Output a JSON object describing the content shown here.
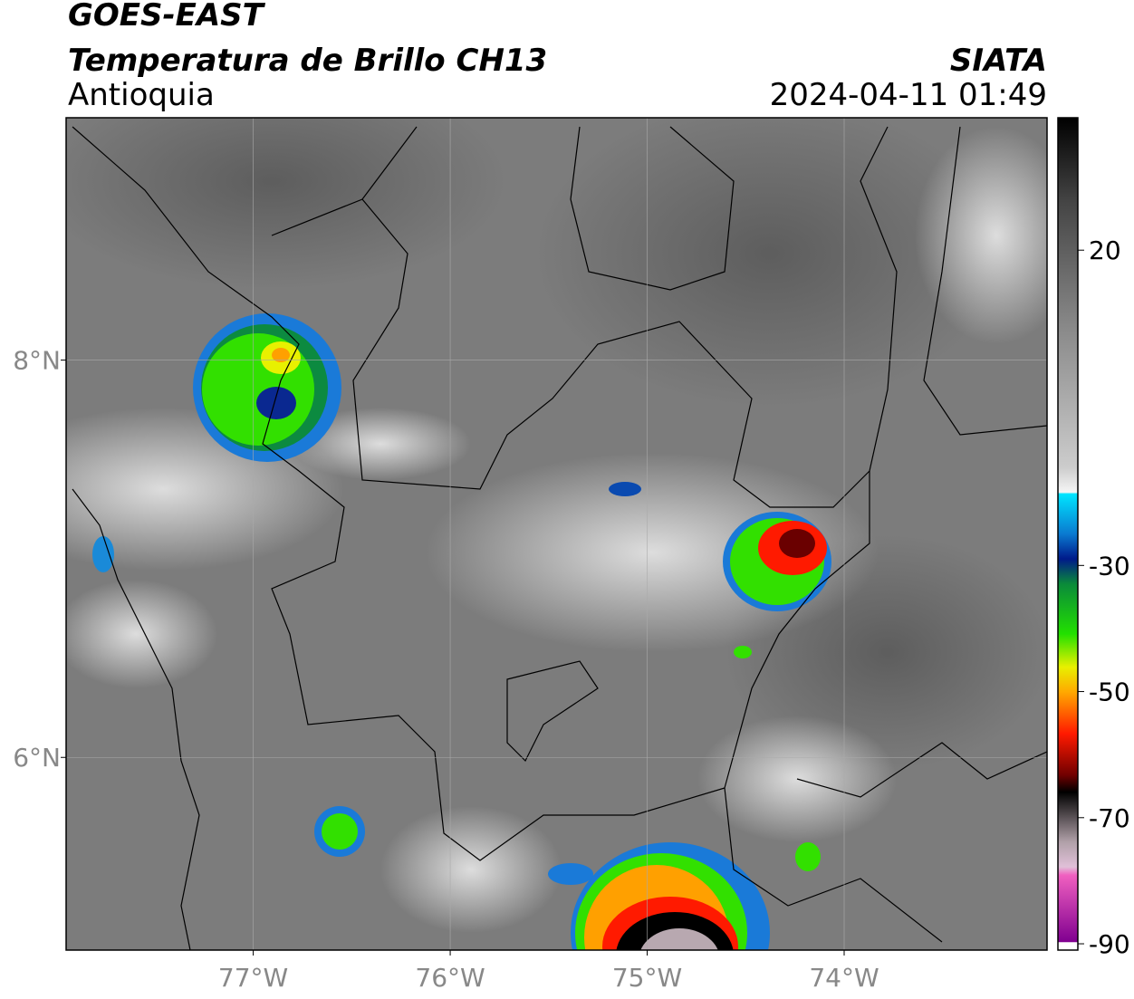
{
  "header": {
    "title": "GOES-EAST",
    "subtitle": "Temperatura de Brillo CH13",
    "region": "Antioquia",
    "source": "SIATA",
    "datetime": "2024-04-11 01:49"
  },
  "map": {
    "xlim": [
      -77.95,
      -72.97
    ],
    "ylim": [
      5.03,
      9.22
    ],
    "xticks": [
      {
        "value": -77,
        "label": "77°W"
      },
      {
        "value": -76,
        "label": "76°W"
      },
      {
        "value": -75,
        "label": "75°W"
      },
      {
        "value": -74,
        "label": "74°W"
      }
    ],
    "yticks": [
      {
        "value": 8,
        "label": "8°N"
      },
      {
        "value": 6,
        "label": "6°N"
      }
    ],
    "grid": true
  },
  "colorbar": {
    "lim": [
      -91,
      41
    ],
    "ticks": [
      20,
      -30,
      -50,
      -70,
      -90
    ]
  }
}
